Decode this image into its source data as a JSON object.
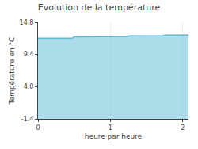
{
  "chart_data": {
    "type": "area",
    "title": "Evolution de la température",
    "x_label": "heure par heure",
    "y_label": "Température en °C",
    "x": [
      0.0,
      0.48,
      0.5,
      0.98,
      1.0,
      1.23,
      1.25,
      1.48,
      1.5,
      1.73,
      1.75,
      2.08
    ],
    "values": [
      12.1,
      12.1,
      12.35,
      12.35,
      12.42,
      12.42,
      12.5,
      12.5,
      12.55,
      12.55,
      12.65,
      12.65
    ],
    "color": "#5ab8d5",
    "xlim": [
      0.0,
      2.08
    ],
    "xticks": [
      0,
      1,
      2
    ],
    "ylim": [
      -1.4,
      14.8
    ],
    "yticks": [
      -1.4,
      {
        "value": 4.0,
        "label": "4.0"
      },
      9.4,
      14.8
    ],
    "grid": "x"
  }
}
